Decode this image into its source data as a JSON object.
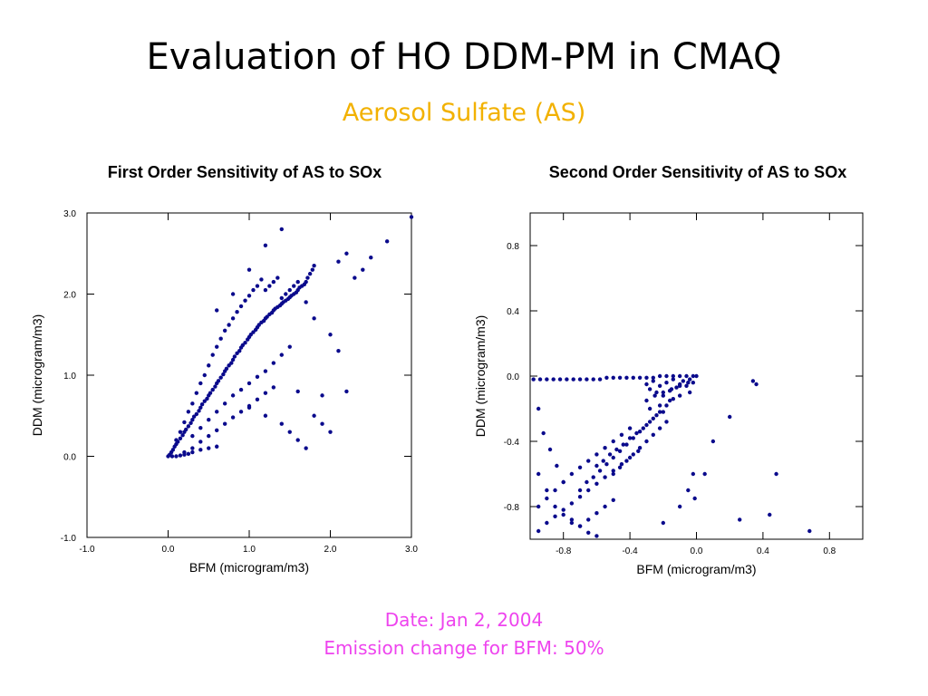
{
  "slide": {
    "title": "Evaluation of HO DDM-PM in CMAQ",
    "subtitle": "Aerosol Sulfate (AS)",
    "footer_date": "Date: Jan 2, 2004",
    "footer_emission": "Emission change for BFM: 50%"
  },
  "colors": {
    "points": "#0a0a8c",
    "subtitle": "#f2b100",
    "footer": "#ee44ee"
  },
  "chart_data": [
    {
      "type": "scatter",
      "title": "First Order Sensitivity of AS to SOx",
      "xlabel": "BFM (microgram/m3)",
      "ylabel": "DDM (microgram/m3)",
      "xlim": [
        -1.0,
        3.0
      ],
      "ylim": [
        -1.0,
        3.0
      ],
      "xticks": [
        -1.0,
        0.0,
        1.0,
        2.0,
        3.0
      ],
      "yticks": [
        -1.0,
        0.0,
        1.0,
        2.0,
        3.0
      ],
      "xtick_labels": [
        "-1.0",
        "0.0",
        "1.0",
        "2.0",
        "3.0"
      ],
      "ytick_labels": [
        "-1.0",
        "0.0",
        "1.0",
        "2.0",
        "3.0"
      ],
      "grid": false,
      "x": [
        0.0,
        0.02,
        0.04,
        0.06,
        0.08,
        0.1,
        0.12,
        0.15,
        0.18,
        0.2,
        0.22,
        0.25,
        0.28,
        0.3,
        0.32,
        0.35,
        0.38,
        0.4,
        0.42,
        0.45,
        0.48,
        0.5,
        0.52,
        0.55,
        0.58,
        0.6,
        0.62,
        0.65,
        0.68,
        0.7,
        0.72,
        0.75,
        0.78,
        0.8,
        0.82,
        0.85,
        0.88,
        0.9,
        0.92,
        0.95,
        0.98,
        1.0,
        1.02,
        1.05,
        1.08,
        1.1,
        1.12,
        1.15,
        1.18,
        1.2,
        1.22,
        1.25,
        1.28,
        1.3,
        1.32,
        1.35,
        1.38,
        1.4,
        1.42,
        1.45,
        1.48,
        1.5,
        1.52,
        1.55,
        1.58,
        1.6,
        1.62,
        1.65,
        1.68,
        1.7,
        1.72,
        1.75,
        1.78,
        1.8,
        0.1,
        0.15,
        0.2,
        0.25,
        0.3,
        0.35,
        0.4,
        0.45,
        0.5,
        0.55,
        0.6,
        0.65,
        0.7,
        0.75,
        0.8,
        0.85,
        0.9,
        0.95,
        1.0,
        1.05,
        1.1,
        1.15,
        1.2,
        1.25,
        1.3,
        1.35,
        1.4,
        1.45,
        1.5,
        1.55,
        1.6,
        0.3,
        0.4,
        0.5,
        0.6,
        0.7,
        0.8,
        0.9,
        1.0,
        1.1,
        1.2,
        1.3,
        1.4,
        1.5,
        0.2,
        0.3,
        0.4,
        0.5,
        0.6,
        0.7,
        0.8,
        0.9,
        1.0,
        1.1,
        1.2,
        1.3,
        0.05,
        0.1,
        0.15,
        0.2,
        0.25,
        0.3,
        0.4,
        0.5,
        0.6,
        1.0,
        1.2,
        1.4,
        1.5,
        1.6,
        1.7,
        1.8,
        1.9,
        2.0,
        2.1,
        2.2,
        2.3,
        2.4,
        2.5,
        2.7,
        3.0,
        0.6,
        0.8,
        1.0,
        1.2,
        1.4,
        1.7,
        1.8,
        2.0,
        2.1,
        1.6,
        1.9,
        2.2
      ],
      "y": [
        0.0,
        0.02,
        0.05,
        0.08,
        0.12,
        0.15,
        0.18,
        0.22,
        0.26,
        0.3,
        0.33,
        0.37,
        0.41,
        0.45,
        0.49,
        0.52,
        0.56,
        0.6,
        0.64,
        0.68,
        0.71,
        0.75,
        0.78,
        0.82,
        0.86,
        0.9,
        0.93,
        0.97,
        1.01,
        1.05,
        1.08,
        1.12,
        1.15,
        1.19,
        1.23,
        1.27,
        1.3,
        1.34,
        1.37,
        1.4,
        1.44,
        1.47,
        1.5,
        1.53,
        1.56,
        1.59,
        1.62,
        1.65,
        1.67,
        1.7,
        1.72,
        1.75,
        1.77,
        1.8,
        1.82,
        1.84,
        1.86,
        1.88,
        1.9,
        1.92,
        1.94,
        1.96,
        1.98,
        2.0,
        2.02,
        2.05,
        2.08,
        2.1,
        2.12,
        2.15,
        2.2,
        2.25,
        2.3,
        2.35,
        0.2,
        0.3,
        0.42,
        0.55,
        0.65,
        0.78,
        0.9,
        1.0,
        1.12,
        1.25,
        1.35,
        1.45,
        1.55,
        1.62,
        1.7,
        1.78,
        1.85,
        1.92,
        1.98,
        2.05,
        2.1,
        2.18,
        2.05,
        2.1,
        2.15,
        2.2,
        1.95,
        2.0,
        2.05,
        2.1,
        2.15,
        0.25,
        0.35,
        0.45,
        0.55,
        0.65,
        0.75,
        0.82,
        0.9,
        0.98,
        1.05,
        1.15,
        1.25,
        1.35,
        0.05,
        0.1,
        0.18,
        0.25,
        0.32,
        0.4,
        0.48,
        0.55,
        0.62,
        0.7,
        0.78,
        0.85,
        0.0,
        0.0,
        0.01,
        0.02,
        0.03,
        0.05,
        0.08,
        0.1,
        0.12,
        0.6,
        0.5,
        0.4,
        0.3,
        0.2,
        0.1,
        0.5,
        0.4,
        0.3,
        2.4,
        2.5,
        2.2,
        2.3,
        2.45,
        2.65,
        2.95,
        1.8,
        2.0,
        2.3,
        2.6,
        2.8,
        1.9,
        1.7,
        1.5,
        1.3,
        0.8,
        0.75,
        0.8
      ]
    },
    {
      "type": "scatter",
      "title": "Second Order Sensitivity of AS to SOx",
      "xlabel": "BFM (microgram/m3)",
      "ylabel": "DDM (microgram/m3)",
      "xlim": [
        -1.0,
        1.0
      ],
      "ylim": [
        -1.0,
        1.0
      ],
      "xticks": [
        -0.8,
        -0.4,
        0.0,
        0.4,
        0.8
      ],
      "yticks": [
        -0.8,
        -0.4,
        0.0,
        0.4,
        0.8
      ],
      "xtick_labels": [
        "-0.8",
        "-0.4",
        "0.0",
        "0.4",
        "0.8"
      ],
      "ytick_labels": [
        "-0.8",
        "-0.4",
        "0.0",
        "0.4",
        "0.8"
      ],
      "grid": false,
      "x": [
        -0.98,
        -0.94,
        -0.9,
        -0.86,
        -0.82,
        -0.78,
        -0.74,
        -0.7,
        -0.66,
        -0.62,
        -0.58,
        -0.54,
        -0.5,
        -0.46,
        -0.42,
        -0.38,
        -0.34,
        -0.3,
        -0.26,
        -0.22,
        -0.18,
        -0.14,
        -0.1,
        -0.06,
        -0.02,
        0.0,
        -0.3,
        -0.28,
        -0.26,
        -0.24,
        -0.22,
        -0.2,
        -0.18,
        -0.16,
        -0.14,
        -0.12,
        -0.1,
        -0.08,
        -0.06,
        -0.04,
        -0.02,
        -0.3,
        -0.25,
        -0.2,
        -0.15,
        -0.1,
        -0.05,
        -0.28,
        -0.22,
        -0.16,
        -0.1,
        -0.04,
        -0.7,
        -0.66,
        -0.62,
        -0.58,
        -0.54,
        -0.5,
        -0.46,
        -0.42,
        -0.38,
        -0.34,
        -0.3,
        -0.26,
        -0.22,
        -0.18,
        -0.14,
        -0.6,
        -0.56,
        -0.52,
        -0.48,
        -0.44,
        -0.4,
        -0.36,
        -0.32,
        -0.28,
        -0.24,
        -0.2,
        -0.5,
        -0.46,
        -0.42,
        -0.38,
        -0.34,
        -0.3,
        -0.26,
        -0.22,
        -0.18,
        -0.95,
        -0.9,
        -0.85,
        -0.8,
        -0.75,
        -0.7,
        -0.65,
        -0.6,
        -0.55,
        -0.5,
        -0.45,
        -0.4,
        -0.35,
        -0.95,
        -0.9,
        -0.85,
        -0.8,
        -0.75,
        -0.7,
        -0.65,
        -0.6,
        -0.55,
        -0.5,
        -0.45,
        -0.4,
        -0.95,
        -0.92,
        -0.88,
        -0.84,
        -0.8,
        -0.75,
        -0.7,
        -0.65,
        -0.6,
        -0.95,
        -0.9,
        -0.85,
        -0.8,
        -0.75,
        -0.7,
        -0.65,
        -0.6,
        -0.55,
        -0.5,
        -0.2,
        -0.1,
        -0.05,
        0.05,
        0.1,
        0.2,
        0.26,
        0.34,
        0.36,
        0.44,
        0.48,
        0.68,
        -0.02,
        -0.01
      ],
      "y": [
        -0.02,
        -0.02,
        -0.02,
        -0.02,
        -0.02,
        -0.02,
        -0.02,
        -0.02,
        -0.02,
        -0.02,
        -0.02,
        -0.01,
        -0.01,
        -0.01,
        -0.01,
        -0.01,
        -0.01,
        -0.01,
        -0.01,
        0.0,
        0.0,
        0.0,
        0.0,
        0.0,
        0.0,
        0.0,
        -0.05,
        -0.08,
        -0.03,
        -0.1,
        -0.06,
        -0.12,
        -0.04,
        -0.09,
        -0.02,
        -0.07,
        -0.05,
        -0.03,
        -0.06,
        -0.02,
        -0.04,
        -0.15,
        -0.12,
        -0.1,
        -0.08,
        -0.06,
        -0.04,
        -0.2,
        -0.18,
        -0.15,
        -0.12,
        -0.1,
        -0.7,
        -0.65,
        -0.62,
        -0.58,
        -0.54,
        -0.5,
        -0.46,
        -0.42,
        -0.38,
        -0.34,
        -0.3,
        -0.26,
        -0.22,
        -0.18,
        -0.14,
        -0.55,
        -0.52,
        -0.48,
        -0.45,
        -0.42,
        -0.38,
        -0.35,
        -0.32,
        -0.28,
        -0.24,
        -0.22,
        -0.6,
        -0.56,
        -0.52,
        -0.48,
        -0.44,
        -0.4,
        -0.36,
        -0.32,
        -0.28,
        -0.95,
        -0.9,
        -0.86,
        -0.82,
        -0.78,
        -0.74,
        -0.7,
        -0.66,
        -0.62,
        -0.58,
        -0.54,
        -0.5,
        -0.46,
        -0.8,
        -0.75,
        -0.7,
        -0.65,
        -0.6,
        -0.56,
        -0.52,
        -0.48,
        -0.44,
        -0.4,
        -0.36,
        -0.32,
        -0.2,
        -0.35,
        -0.45,
        -0.55,
        -0.65,
        -0.88,
        -0.92,
        -0.96,
        -0.98,
        -0.6,
        -0.7,
        -0.8,
        -0.85,
        -0.9,
        -0.92,
        -0.88,
        -0.84,
        -0.8,
        -0.76,
        -0.9,
        -0.8,
        -0.7,
        -0.6,
        -0.4,
        -0.25,
        -0.88,
        -0.03,
        -0.05,
        -0.85,
        -0.6,
        -0.95,
        -0.6,
        -0.75
      ]
    }
  ]
}
